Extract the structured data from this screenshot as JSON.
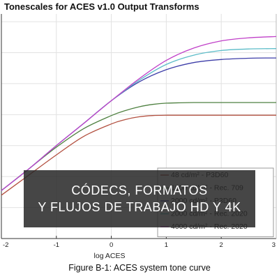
{
  "chart_data": {
    "type": "line",
    "title": "Tonescales for ACES v1.0 Output Transforms",
    "xlabel": "log ACES",
    "ylabel": "",
    "xlim": [
      -2,
      3
    ],
    "ylim": [
      -3,
      4.25
    ],
    "xticks": [
      "-2",
      "-1",
      "0",
      "1",
      "2",
      "3"
    ],
    "grid": true,
    "legend_position": "bottom-right",
    "series": [
      {
        "name": "48 cd/m² - P3D60",
        "color": "#b35040",
        "x": [
          -2,
          -1.5,
          -1,
          -0.5,
          0,
          0.25,
          0.5,
          0.75,
          1,
          1.5,
          2,
          2.5,
          3
        ],
        "y": [
          -1.6,
          -0.95,
          -0.3,
          0.3,
          0.7,
          0.84,
          0.93,
          0.97,
          0.98,
          0.98,
          0.98,
          0.98,
          0.98
        ]
      },
      {
        "name": "1000 cd/m² - Rec. 709",
        "color": "#4e8040",
        "x": [
          -2,
          -1.5,
          -1,
          -0.5,
          0,
          0.25,
          0.5,
          0.75,
          1,
          1.5,
          2,
          2.5,
          3
        ],
        "y": [
          -1.45,
          -0.75,
          -0.05,
          0.55,
          0.97,
          1.13,
          1.25,
          1.33,
          1.37,
          1.39,
          1.39,
          1.39,
          1.39
        ]
      },
      {
        "name": "2000 cd/m² - P3D60",
        "color": "#3d3da8",
        "x": [
          -2,
          -1.5,
          -1,
          -0.5,
          0,
          0.5,
          1,
          1.5,
          2,
          2.5,
          3
        ],
        "y": [
          -1.45,
          -0.75,
          0,
          0.72,
          1.45,
          2.05,
          2.45,
          2.68,
          2.78,
          2.82,
          2.83
        ]
      },
      {
        "name": "2000 cd/m² - Rec. 2020",
        "color": "#5bbcc8",
        "x": [
          -2,
          -1.5,
          -1,
          -0.5,
          0,
          0.5,
          1,
          1.5,
          2,
          2.5,
          3
        ],
        "y": [
          -1.45,
          -0.75,
          0,
          0.72,
          1.45,
          2.1,
          2.62,
          2.92,
          3.07,
          3.12,
          3.13
        ]
      },
      {
        "name": "4000 cd/m² - Rec. 2020",
        "color": "#c040c8",
        "x": [
          -2,
          -1.5,
          -1,
          -0.5,
          0,
          0.5,
          1,
          1.5,
          2,
          2.5,
          3
        ],
        "y": [
          -1.45,
          -0.75,
          0,
          0.72,
          1.45,
          2.15,
          2.75,
          3.15,
          3.38,
          3.48,
          3.52
        ]
      }
    ]
  },
  "caption": "Figure B-1: ACES system tone curve",
  "overlay": {
    "line1": "CÓDECS, FORMATOS",
    "line2": "Y FLUJOS DE TRABAJO HD Y 4K"
  }
}
